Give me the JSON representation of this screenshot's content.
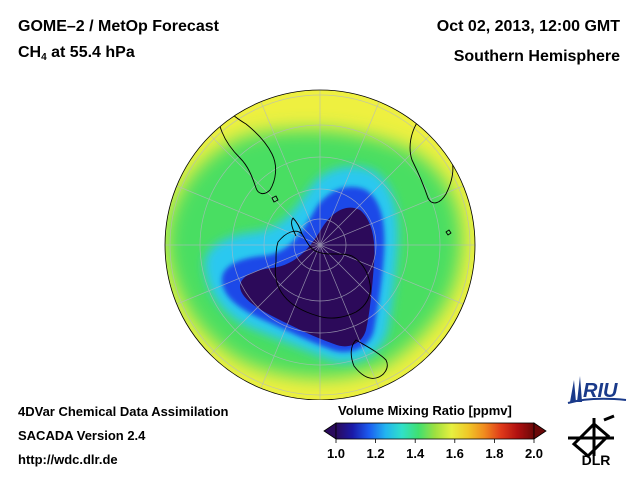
{
  "header": {
    "title": "GOME–2 / MetOp Forecast",
    "species_main": "CH",
    "species_sub": "4",
    "species_rest": " at 55.4 hPa",
    "datetime": "Oct 02, 2013, 12:00 GMT",
    "region": "Southern Hemisphere"
  },
  "footer": {
    "line1": "4DVar Chemical Data Assimilation",
    "line2": "SACADA Version 2.4",
    "line3": "http://wdc.dlr.de"
  },
  "colorbar": {
    "title": "Volume Mixing Ratio [ppmv]",
    "min": 1.0,
    "max": 2.0,
    "ticks": [
      "1.0",
      "1.2",
      "1.4",
      "1.6",
      "1.8",
      "2.0"
    ],
    "colors": [
      "#2a0a5c",
      "#1a1aa8",
      "#1c5cf0",
      "#22b4f0",
      "#30e0c8",
      "#40e070",
      "#9ee040",
      "#e6f040",
      "#f0c828",
      "#f08a1e",
      "#e03a1a",
      "#b01010",
      "#6a0808"
    ]
  },
  "logos": {
    "riu": "RIU",
    "dlr": "DLR"
  },
  "map": {
    "projection": "orthographic-south-polar",
    "background_level_ppmv": 1.65,
    "vortex_level_ppmv": 1.0,
    "colors": {
      "outside": "#eef040",
      "green": "#48de62",
      "cyan": "#2cc8f0",
      "blue": "#1e4ae8",
      "core": "#2c0a5a"
    }
  }
}
